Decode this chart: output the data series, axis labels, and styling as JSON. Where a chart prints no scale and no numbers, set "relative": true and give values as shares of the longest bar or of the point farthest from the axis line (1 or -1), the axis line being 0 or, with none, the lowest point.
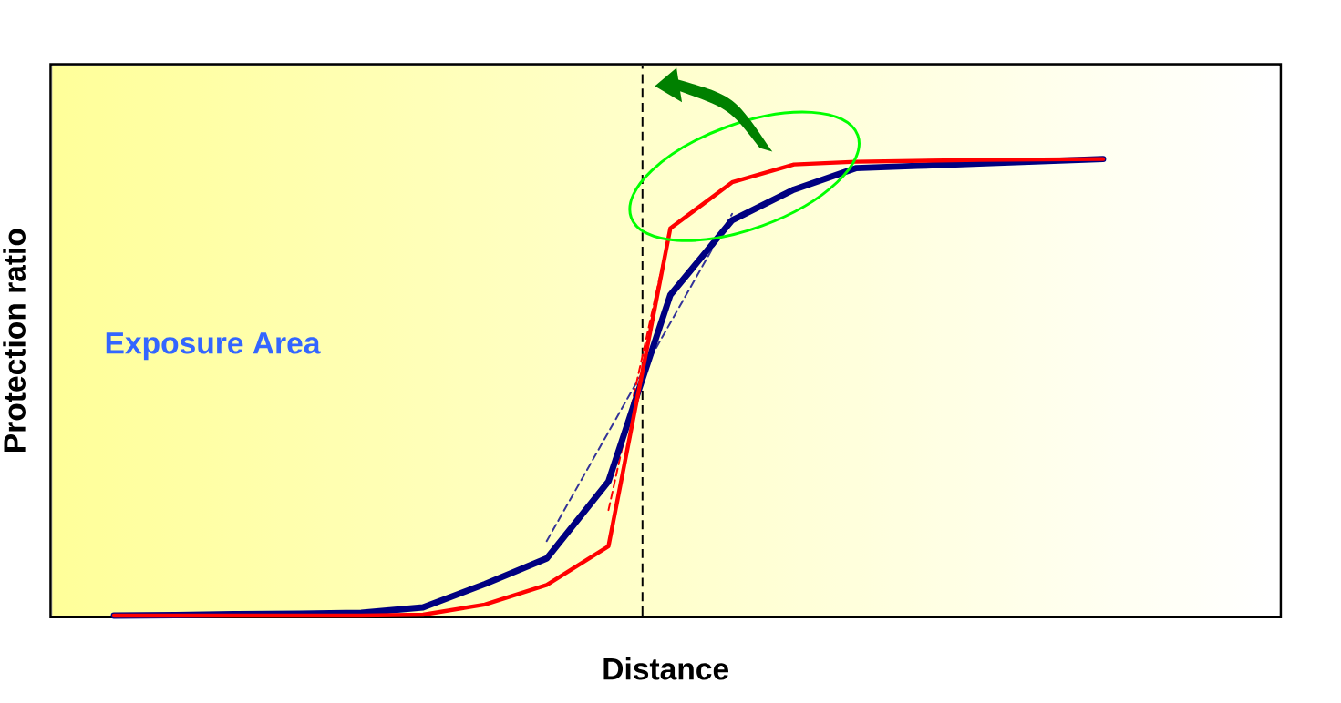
{
  "chart_data": {
    "type": "line",
    "relative": true,
    "xlabel": "Distance",
    "ylabel": "Protection ratio",
    "annotations": [
      "Exposure Area"
    ],
    "categories": [
      null,
      null,
      null,
      null,
      null,
      null,
      null,
      null,
      null,
      null,
      null,
      null,
      null,
      null,
      null,
      null,
      null
    ],
    "marker": "none",
    "line_style": "solid",
    "series": [
      {
        "color": "#000080",
        "values": [
          0,
          0.001,
          0.003,
          0.004,
          0.006,
          0.018,
          0.069,
          0.125,
          0.294,
          0.702,
          0.866,
          0.933,
          0.98,
          0.985,
          0.99,
          0.995,
          1
        ]
      },
      {
        "color": "#ff0000",
        "values": [
          0,
          0,
          0,
          0,
          0,
          0.002,
          0.024,
          0.067,
          0.152,
          0.848,
          0.949,
          0.988,
          0.994,
          0.996,
          0.998,
          0.999,
          1
        ]
      },
      {
        "type": "line",
        "line_style": "dashed",
        "color": "#333399",
        "values": [
          null,
          null,
          null,
          null,
          null,
          null,
          null,
          0.163,
          0.402,
          0.641,
          0.88,
          null,
          null,
          null,
          null,
          null,
          null
        ]
      },
      {
        "type": "line",
        "line_style": "dashed",
        "color": "#ff0000",
        "values": [
          null,
          null,
          null,
          null,
          null,
          null,
          null,
          null,
          0.231,
          0.846,
          null,
          null,
          null,
          null,
          null,
          null,
          null
        ]
      }
    ]
  }
}
